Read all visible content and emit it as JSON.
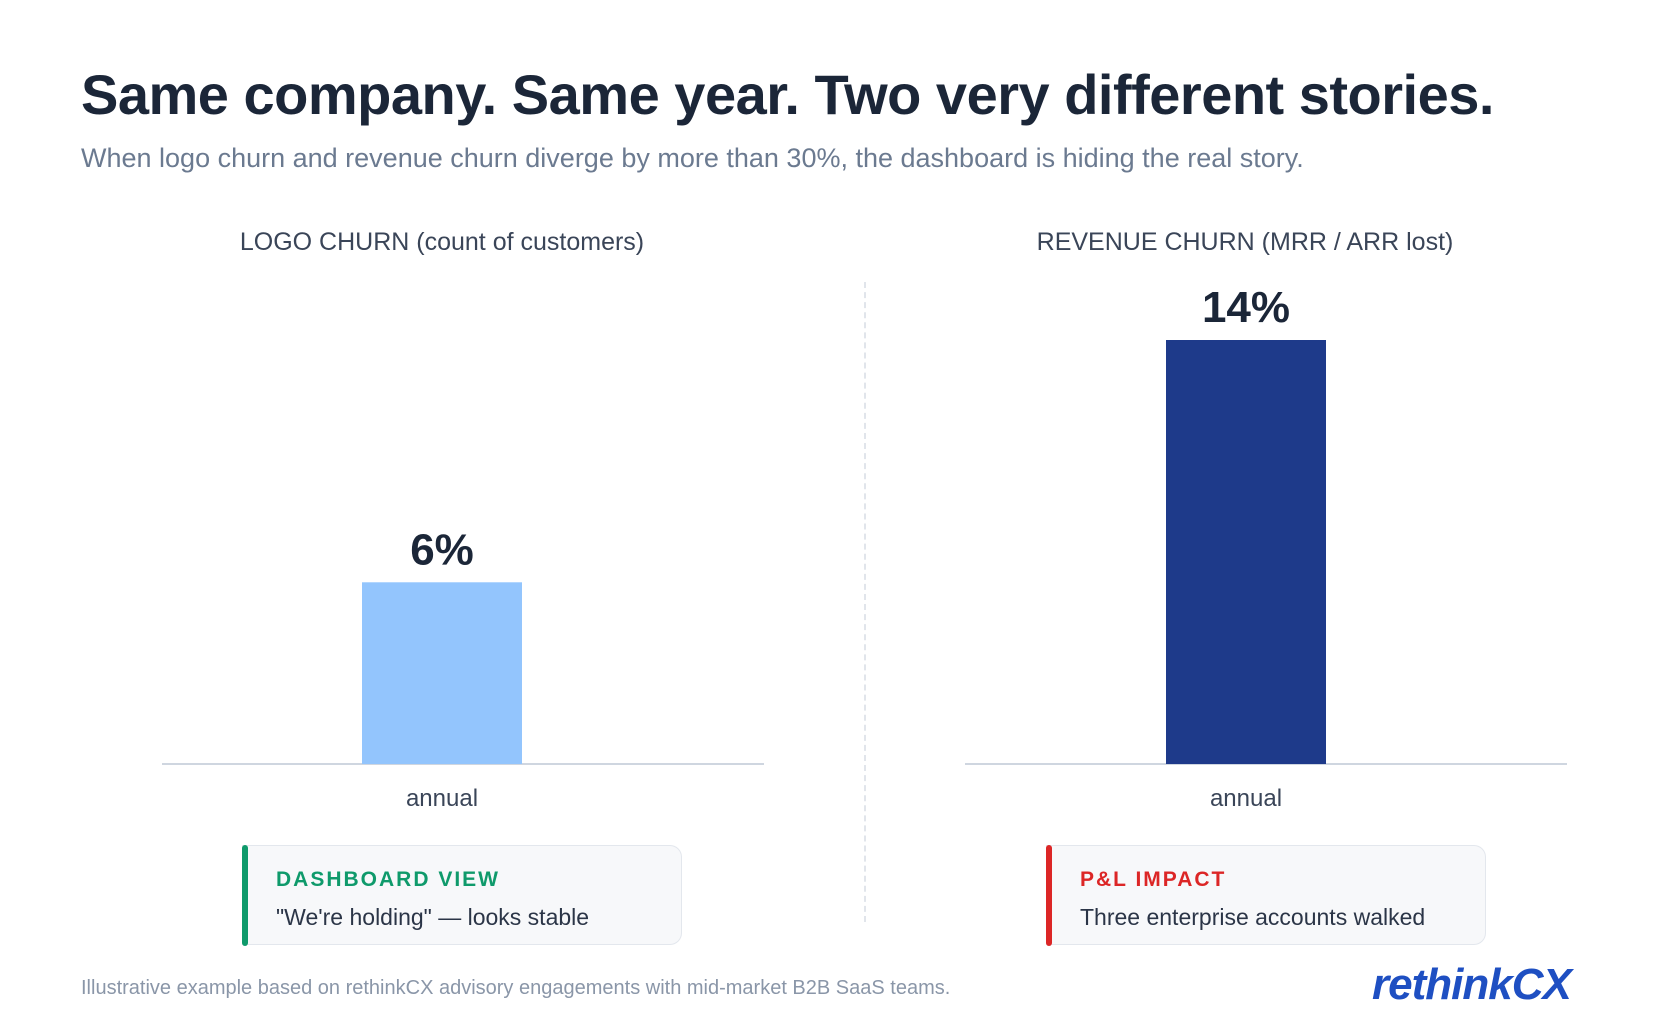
{
  "header": {
    "title": "Same company. Same year. Two very different stories.",
    "subtitle": "When logo churn and revenue churn diverge by more than 30%, the dashboard is hiding the real story."
  },
  "chart_data": [
    {
      "type": "bar",
      "title": "LOGO CHURN (count of customers)",
      "categories": [
        "annual"
      ],
      "values": [
        6
      ],
      "value_labels": [
        "6%"
      ],
      "unit": "%",
      "ylim": [
        0,
        14
      ],
      "grid": false,
      "color": "#93c5fd"
    },
    {
      "type": "bar",
      "title": "REVENUE CHURN (MRR / ARR lost)",
      "categories": [
        "annual"
      ],
      "values": [
        14
      ],
      "value_labels": [
        "14%"
      ],
      "unit": "%",
      "ylim": [
        0,
        14
      ],
      "grid": false,
      "color": "#1e3a8a"
    }
  ],
  "callouts": {
    "left": {
      "label": "DASHBOARD VIEW",
      "text": "\"We're holding\" — looks stable",
      "color": "#0f9a6b"
    },
    "right": {
      "label": "P&L IMPACT",
      "text": "Three enterprise accounts walked",
      "color": "#dc2626"
    }
  },
  "footer": {
    "note": "Illustrative example based on rethinkCX advisory engagements with mid-market B2B SaaS teams.",
    "logo_text_a": "rethink",
    "logo_text_b": "CX"
  }
}
